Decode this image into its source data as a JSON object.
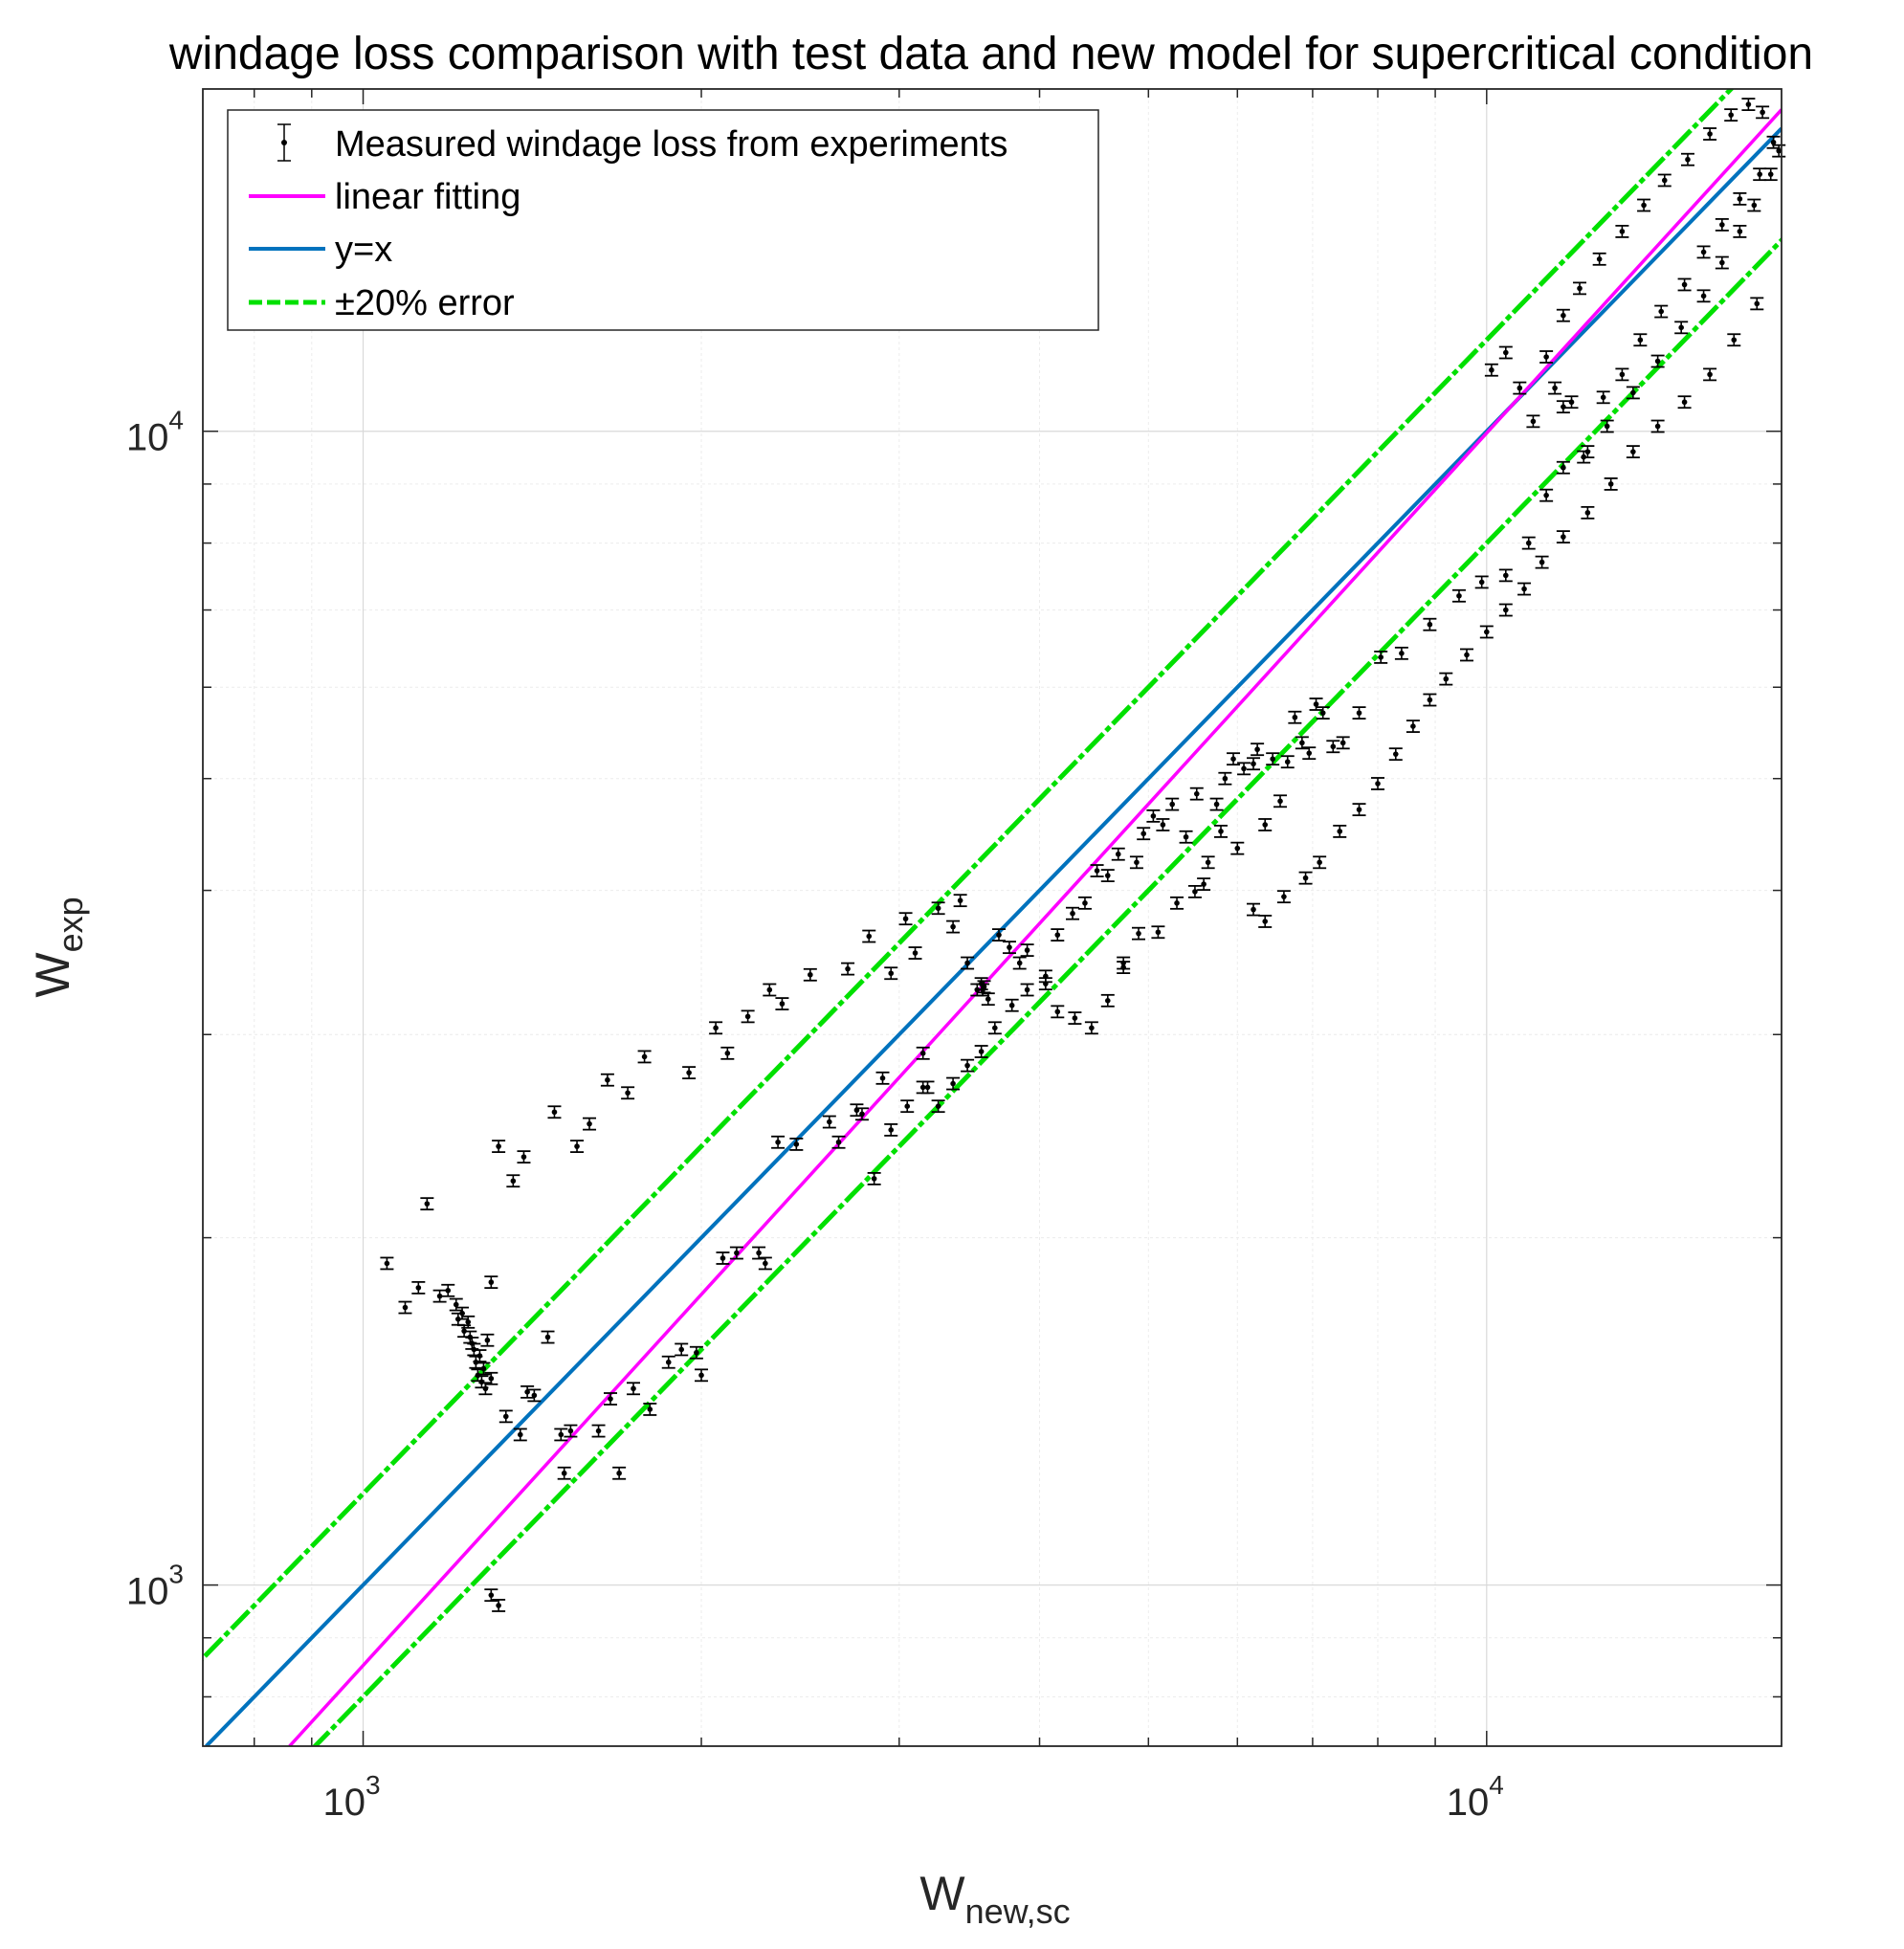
{
  "chart_data": {
    "type": "scatter",
    "title": "windage loss comparison with test data and new model for supercritical condition",
    "xlabel": {
      "main": "W",
      "sub": "new,sc"
    },
    "ylabel": {
      "main": "W",
      "sub": "exp"
    },
    "xscale": "log",
    "yscale": "log",
    "xlim": [
      720,
      18300
    ],
    "ylim": [
      725,
      19800
    ],
    "grid": true,
    "legend_position": "top-left",
    "xticks": [
      {
        "value": 1000,
        "base": "10",
        "exp": "3"
      },
      {
        "value": 10000,
        "base": "10",
        "exp": "4"
      }
    ],
    "yticks": [
      {
        "value": 1000,
        "base": "10",
        "exp": "3"
      },
      {
        "value": 10000,
        "base": "10",
        "exp": "4"
      }
    ],
    "colors": {
      "linear_fitting": "#ff00ff",
      "y_equals_x": "#0072bd",
      "error_band": "#00e000",
      "points": "#000000"
    },
    "series": [
      {
        "name": "Measured windage loss from experiments",
        "kind": "errorbar",
        "points": [
          [
            1050,
            1900
          ],
          [
            1090,
            1740
          ],
          [
            1120,
            1810
          ],
          [
            1140,
            2140
          ],
          [
            1170,
            1780
          ],
          [
            1190,
            1800
          ],
          [
            1210,
            1750
          ],
          [
            1215,
            1700
          ],
          [
            1225,
            1720
          ],
          [
            1230,
            1660
          ],
          [
            1240,
            1690
          ],
          [
            1245,
            1640
          ],
          [
            1250,
            1620
          ],
          [
            1255,
            1600
          ],
          [
            1260,
            1560
          ],
          [
            1265,
            1520
          ],
          [
            1270,
            1580
          ],
          [
            1275,
            1500
          ],
          [
            1280,
            1540
          ],
          [
            1285,
            1480
          ],
          [
            1290,
            1630
          ],
          [
            1300,
            1510
          ],
          [
            1300,
            1830
          ],
          [
            1320,
            2400
          ],
          [
            1340,
            1400
          ],
          [
            1360,
            2240
          ],
          [
            1380,
            1350
          ],
          [
            1390,
            2350
          ],
          [
            1400,
            1470
          ],
          [
            1420,
            1460
          ],
          [
            1460,
            1640
          ],
          [
            1480,
            2570
          ],
          [
            1500,
            1350
          ],
          [
            1510,
            1250
          ],
          [
            1530,
            1360
          ],
          [
            1550,
            2400
          ],
          [
            1590,
            2510
          ],
          [
            1620,
            1360
          ],
          [
            1650,
            2740
          ],
          [
            1660,
            1450
          ],
          [
            1690,
            1250
          ],
          [
            1720,
            2670
          ],
          [
            1740,
            1480
          ],
          [
            1780,
            2870
          ],
          [
            1800,
            1420
          ],
          [
            1870,
            1560
          ],
          [
            1920,
            1600
          ],
          [
            1950,
            2780
          ],
          [
            1980,
            1590
          ],
          [
            2000,
            1520
          ],
          [
            2060,
            3040
          ],
          [
            2090,
            1920
          ],
          [
            2110,
            2890
          ],
          [
            2150,
            1940
          ],
          [
            2200,
            3110
          ],
          [
            2250,
            1940
          ],
          [
            2280,
            1900
          ],
          [
            2300,
            3280
          ],
          [
            2340,
            2420
          ],
          [
            2360,
            3190
          ],
          [
            2430,
            2410
          ],
          [
            2500,
            3380
          ],
          [
            2600,
            2520
          ],
          [
            2700,
            3420
          ],
          [
            2780,
            2560
          ],
          [
            2820,
            3650
          ],
          [
            2900,
            2750
          ],
          [
            2950,
            3390
          ],
          [
            3040,
            3780
          ],
          [
            3100,
            3530
          ],
          [
            3150,
            2890
          ],
          [
            3180,
            2700
          ],
          [
            3250,
            3860
          ],
          [
            3350,
            3720
          ],
          [
            3400,
            3920
          ],
          [
            3450,
            3460
          ],
          [
            3520,
            3280
          ],
          [
            3600,
            3220
          ],
          [
            3680,
            3660
          ],
          [
            3760,
            3570
          ],
          [
            3840,
            3460
          ],
          [
            3900,
            3550
          ],
          [
            4050,
            3370
          ],
          [
            4150,
            3660
          ],
          [
            4280,
            3820
          ],
          [
            4390,
            3900
          ],
          [
            4500,
            4160
          ],
          [
            4600,
            4120
          ],
          [
            4700,
            4300
          ],
          [
            4750,
            3430
          ],
          [
            4880,
            4230
          ],
          [
            4950,
            4480
          ],
          [
            5050,
            4640
          ],
          [
            5150,
            4560
          ],
          [
            5250,
            4750
          ],
          [
            5400,
            4450
          ],
          [
            5520,
            4850
          ],
          [
            5650,
            4230
          ],
          [
            5750,
            4750
          ],
          [
            5850,
            5000
          ],
          [
            5950,
            5200
          ],
          [
            6080,
            5100
          ],
          [
            6200,
            5150
          ],
          [
            6250,
            5300
          ],
          [
            6350,
            4560
          ],
          [
            6450,
            5200
          ],
          [
            6550,
            4780
          ],
          [
            6650,
            5170
          ],
          [
            6750,
            5650
          ],
          [
            6850,
            5370
          ],
          [
            6950,
            5260
          ],
          [
            7050,
            5800
          ],
          [
            7150,
            5700
          ],
          [
            7300,
            5330
          ],
          [
            7450,
            5370
          ],
          [
            7700,
            5700
          ],
          [
            8050,
            6370
          ],
          [
            8400,
            6420
          ],
          [
            8900,
            6800
          ],
          [
            9450,
            7200
          ],
          [
            9900,
            7400
          ],
          [
            10400,
            7500
          ],
          [
            10900,
            8000
          ],
          [
            11300,
            8800
          ],
          [
            11700,
            9300
          ],
          [
            12200,
            9500
          ],
          [
            12800,
            10100
          ],
          [
            13500,
            10800
          ],
          [
            14200,
            11500
          ],
          [
            14900,
            12300
          ],
          [
            15600,
            13100
          ],
          [
            16200,
            14000
          ],
          [
            16800,
            14900
          ],
          [
            17300,
            15700
          ],
          [
            17900,
            16700
          ],
          [
            18200,
            17500
          ],
          [
            10100,
            11300
          ],
          [
            10400,
            11700
          ],
          [
            10700,
            10900
          ],
          [
            11000,
            10200
          ],
          [
            11300,
            11600
          ],
          [
            11700,
            12600
          ],
          [
            12100,
            13300
          ],
          [
            12600,
            14100
          ],
          [
            13200,
            14900
          ],
          [
            13800,
            15700
          ],
          [
            14400,
            16500
          ],
          [
            15100,
            17200
          ],
          [
            15800,
            18100
          ],
          [
            16500,
            18800
          ],
          [
            17100,
            19200
          ],
          [
            17600,
            18900
          ],
          [
            11500,
            10900
          ],
          [
            11700,
            10500
          ],
          [
            11900,
            10600
          ],
          [
            12300,
            9600
          ],
          [
            12700,
            10700
          ],
          [
            13200,
            11200
          ],
          [
            13700,
            12000
          ],
          [
            14300,
            12700
          ],
          [
            15000,
            13400
          ],
          [
            15600,
            14300
          ],
          [
            16200,
            15100
          ],
          [
            16800,
            15900
          ],
          [
            17500,
            16700
          ],
          [
            18000,
            17800
          ],
          [
            5600,
            4050
          ],
          [
            5800,
            4500
          ],
          [
            6000,
            4350
          ],
          [
            6200,
            3850
          ],
          [
            6350,
            3760
          ],
          [
            6600,
            3950
          ],
          [
            6900,
            4100
          ],
          [
            7100,
            4230
          ],
          [
            7400,
            4500
          ],
          [
            7700,
            4700
          ],
          [
            8000,
            4950
          ],
          [
            8300,
            5250
          ],
          [
            8600,
            5550
          ],
          [
            8900,
            5850
          ],
          [
            9200,
            6100
          ],
          [
            9600,
            6400
          ],
          [
            10000,
            6700
          ],
          [
            10400,
            7000
          ],
          [
            10800,
            7300
          ],
          [
            11200,
            7700
          ],
          [
            11700,
            8100
          ],
          [
            12300,
            8500
          ],
          [
            12900,
            9000
          ],
          [
            13500,
            9600
          ],
          [
            14200,
            10100
          ],
          [
            15000,
            10600
          ],
          [
            15800,
            11200
          ],
          [
            16600,
            12000
          ],
          [
            17400,
            12900
          ],
          [
            2650,
            2420
          ],
          [
            2750,
            2580
          ],
          [
            2850,
            2250
          ],
          [
            2950,
            2480
          ],
          [
            3050,
            2600
          ],
          [
            3150,
            2700
          ],
          [
            3250,
            2600
          ],
          [
            3350,
            2720
          ],
          [
            3450,
            2820
          ],
          [
            3550,
            2900
          ],
          [
            3650,
            3040
          ],
          [
            3780,
            3180
          ],
          [
            3900,
            3280
          ],
          [
            4050,
            3320
          ],
          [
            4150,
            3140
          ],
          [
            4300,
            3100
          ],
          [
            4450,
            3040
          ],
          [
            4600,
            3210
          ],
          [
            4750,
            3460
          ],
          [
            4900,
            3670
          ],
          [
            5100,
            3680
          ],
          [
            5300,
            3900
          ],
          [
            5500,
            3990
          ],
          [
            3550,
            3320
          ],
          [
            3560,
            3280
          ],
          [
            3570,
            3300
          ],
          [
            1300,
            980
          ],
          [
            1320,
            960
          ]
        ]
      },
      {
        "name": "linear fitting",
        "kind": "line",
        "x": [
          860,
          18300
        ],
        "y": [
          725,
          19000
        ]
      },
      {
        "name": "y=x",
        "kind": "line",
        "x": [
          725,
          18300
        ],
        "y": [
          725,
          18300
        ]
      },
      {
        "name": "±20% error",
        "kind": "band",
        "factor_upper": 1.2,
        "factor_lower": 0.8
      }
    ]
  }
}
